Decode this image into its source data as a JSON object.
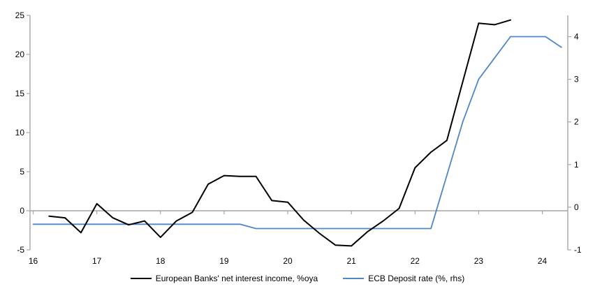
{
  "chart_data": {
    "type": "line",
    "title": "",
    "legend_position": "bottom",
    "grid": "zero-line-only",
    "x_axis": {
      "min": 15.95,
      "max": 24.4,
      "tick_values": [
        16,
        17,
        18,
        19,
        20,
        21,
        22,
        23,
        24
      ],
      "tick_labels": [
        "16",
        "17",
        "18",
        "19",
        "20",
        "21",
        "22",
        "23",
        "24"
      ]
    },
    "left_axis": {
      "min": -5,
      "max": 25,
      "tick_values": [
        25,
        20,
        15,
        10,
        5,
        0,
        -5
      ],
      "tick_labels": [
        "25",
        "20",
        "15",
        "10",
        "5",
        "0",
        "-5"
      ]
    },
    "right_axis": {
      "min": -1,
      "max": 4.5,
      "tick_values": [
        4,
        3,
        2,
        1,
        0,
        -1
      ],
      "tick_labels": [
        "4",
        "3",
        "2",
        "1",
        "0",
        "-1"
      ]
    },
    "series": [
      {
        "name": "European Banks' net interest income, %oya",
        "axis": "left",
        "color": "#000000",
        "stroke_width": 2,
        "x": [
          16.25,
          16.5,
          16.75,
          17.0,
          17.25,
          17.5,
          17.75,
          18.0,
          18.25,
          18.5,
          18.75,
          19.0,
          19.25,
          19.5,
          19.75,
          20.0,
          20.25,
          20.5,
          20.75,
          21.0,
          21.25,
          21.5,
          21.75,
          22.0,
          22.25,
          22.5,
          22.75,
          23.0,
          23.25,
          23.5
        ],
        "values": [
          -0.7,
          -0.9,
          -2.8,
          0.9,
          -0.9,
          -1.8,
          -1.3,
          -3.4,
          -1.3,
          -0.2,
          3.4,
          4.5,
          4.4,
          4.4,
          1.3,
          1.1,
          -1.2,
          -2.9,
          -4.4,
          -4.5,
          -2.7,
          -1.3,
          0.3,
          5.5,
          7.5,
          9.0,
          16.5,
          24.0,
          23.8,
          24.4
        ]
      },
      {
        "name": "ECB Deposit rate (%, rhs)",
        "axis": "right",
        "color": "#4f86c6",
        "stroke_width": 1.8,
        "x": [
          16.0,
          19.25,
          19.5,
          22.25,
          22.5,
          22.75,
          23.0,
          23.25,
          23.5,
          24.05,
          24.3
        ],
        "values": [
          -0.4,
          -0.4,
          -0.5,
          -0.5,
          0.75,
          2.0,
          3.0,
          3.5,
          4.0,
          4.0,
          3.75
        ]
      }
    ]
  },
  "colors": {
    "axis": "#a6a6a6",
    "zero_line": "#a6a6a6",
    "text": "#000000",
    "background": "#ffffff"
  }
}
